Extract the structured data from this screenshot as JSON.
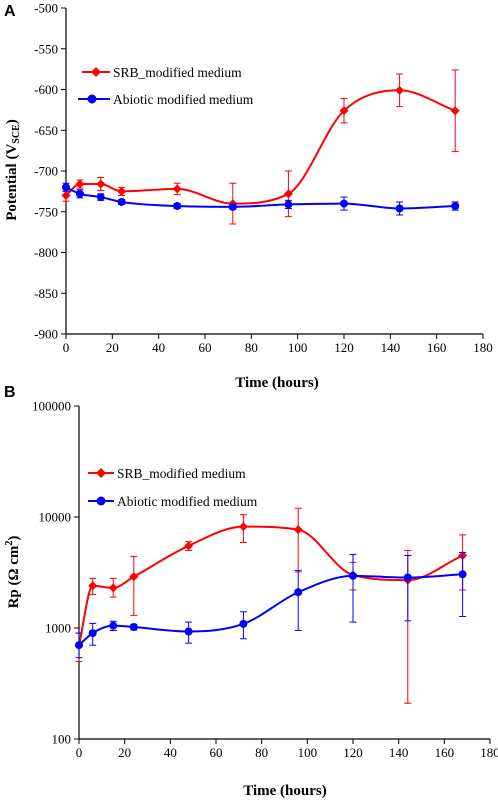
{
  "chart_data": [
    {
      "type": "line",
      "panel_label": "A",
      "ylabel_main": "Potential (V",
      "ylabel_sub": "SCE",
      "ylabel_end": ")",
      "xlabel": "Time (hours)",
      "xlim": [
        0,
        180
      ],
      "ylim": [
        -900,
        -500
      ],
      "y_scale": "linear",
      "x_ticks": [
        0,
        20,
        40,
        60,
        80,
        100,
        120,
        140,
        160,
        180
      ],
      "y_ticks": [
        -500,
        -550,
        -600,
        -650,
        -700,
        -750,
        -800,
        -850,
        -900
      ],
      "grid": false,
      "legend_position": "upper-left",
      "series": [
        {
          "name": "SRB_modified medium",
          "color": "#ff0000",
          "marker": "diamond",
          "x": [
            0,
            6,
            15,
            24,
            48,
            72,
            96,
            120,
            144,
            168
          ],
          "y": [
            -730,
            -716,
            -716,
            -725,
            -722,
            -740,
            -728,
            -626,
            -601,
            -626
          ],
          "err": [
            7,
            5,
            8,
            5,
            7,
            25,
            28,
            15,
            20,
            50
          ]
        },
        {
          "name": "Abiotic modified medium",
          "color": "#0000ff",
          "marker": "circle",
          "x": [
            0,
            6,
            15,
            24,
            48,
            72,
            96,
            120,
            144,
            168
          ],
          "y": [
            -720,
            -728,
            -732,
            -738,
            -743,
            -744,
            -741,
            -740,
            -746,
            -743
          ],
          "err": [
            5,
            5,
            4,
            3,
            3,
            3,
            5,
            8,
            8,
            5
          ]
        }
      ]
    },
    {
      "type": "line",
      "panel_label": "B",
      "ylabel_main": "Rp (Ω cm",
      "ylabel_sup": "2",
      "ylabel_end": ")",
      "xlabel": "Time (hours)",
      "xlim": [
        0,
        180
      ],
      "ylim": [
        100,
        100000
      ],
      "y_scale": "log",
      "x_ticks": [
        0,
        20,
        40,
        60,
        80,
        100,
        120,
        140,
        160,
        180
      ],
      "y_ticks": [
        100,
        1000,
        10000,
        100000
      ],
      "grid": false,
      "legend_position": "upper-left",
      "series": [
        {
          "name": "SRB_modified medium",
          "color": "#ff0000",
          "marker": "diamond",
          "x": [
            0,
            6,
            15,
            24,
            48,
            72,
            96,
            120,
            144,
            168
          ],
          "y": [
            700,
            2400,
            2300,
            2900,
            5500,
            8200,
            7700,
            3000,
            2700,
            4500
          ],
          "err_lo": [
            500,
            2000,
            1900,
            1300,
            5000,
            5900,
            3200,
            2200,
            210,
            2200
          ],
          "err_hi": [
            900,
            2800,
            2800,
            4400,
            6000,
            10500,
            12000,
            3900,
            5000,
            6900
          ]
        },
        {
          "name": "Abiotic modified medium",
          "color": "#0000ff",
          "marker": "circle",
          "x": [
            0,
            6,
            15,
            24,
            48,
            72,
            96,
            120,
            144,
            168
          ],
          "y": [
            700,
            900,
            1050,
            1020,
            930,
            1090,
            2100,
            2950,
            2850,
            3050
          ],
          "err_lo": [
            540,
            700,
            950,
            960,
            730,
            800,
            950,
            1130,
            1160,
            1270
          ],
          "err_hi": [
            900,
            1100,
            1150,
            1080,
            1130,
            1400,
            3300,
            4600,
            4500,
            4800
          ]
        }
      ]
    }
  ]
}
